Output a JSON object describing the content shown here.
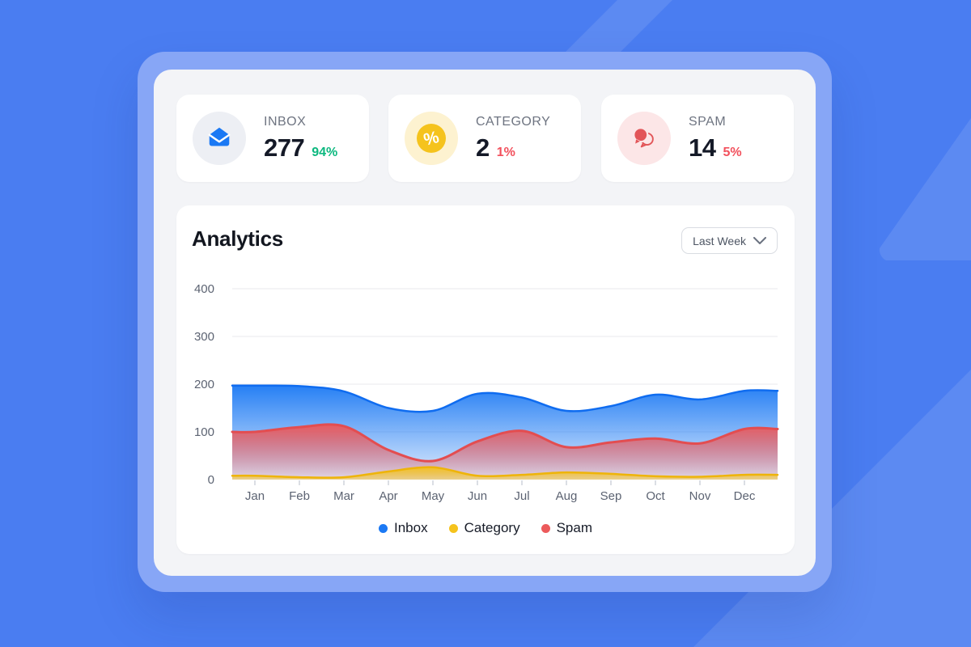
{
  "colors": {
    "background": "#4a7df1",
    "background_decor": "rgba(255,255,255,0.10)",
    "frame": "#87a6f6",
    "panel": "#f3f4f7",
    "card": "#ffffff",
    "positive": "#0cb87f",
    "negative": "#f2505c"
  },
  "stat_cards": [
    {
      "id": "inbox",
      "label": "INBOX",
      "value": "277",
      "percent": "94%",
      "percent_color": "#0cb87f",
      "icon": "mail-icon",
      "icon_bg": "#edeff4",
      "icon_color": "#1b79f4"
    },
    {
      "id": "category",
      "label": "CATEGORY",
      "value": "2",
      "percent": "1%",
      "percent_color": "#f2505c",
      "icon": "percent-icon",
      "icon_bg": "#fdf2d0",
      "icon_color": "#f5c31d"
    },
    {
      "id": "spam",
      "label": "SPAM",
      "value": "14",
      "percent": "5%",
      "percent_color": "#f2505c",
      "icon": "chat-bubbles-icon",
      "icon_bg": "#fce6e7",
      "icon_color": "#e25558"
    }
  ],
  "analytics": {
    "title": "Analytics",
    "range_selector": {
      "label": "Last Week"
    }
  },
  "chart_data": {
    "type": "area",
    "title": "Analytics",
    "categories": [
      "Jan",
      "Feb",
      "Mar",
      "Apr",
      "May",
      "Jun",
      "Jul",
      "Aug",
      "Sep",
      "Oct",
      "Nov",
      "Dec"
    ],
    "series": [
      {
        "name": "Inbox",
        "color": "#1b79f4",
        "stroke": "#0f6cf0",
        "values": [
          197,
          196,
          185,
          150,
          144,
          180,
          172,
          144,
          154,
          178,
          168,
          186
        ]
      },
      {
        "name": "Category",
        "color": "#f5c31d",
        "stroke": "#eeb409",
        "values": [
          8,
          5,
          5,
          17,
          26,
          8,
          10,
          15,
          12,
          7,
          6,
          10
        ]
      },
      {
        "name": "Spam",
        "color": "#ec5a5b",
        "stroke": "#e34d50",
        "values": [
          100,
          110,
          112,
          62,
          39,
          80,
          102,
          68,
          78,
          86,
          76,
          106
        ]
      }
    ],
    "ylim": [
      0,
      400
    ],
    "yticks": [
      0,
      100,
      200,
      300,
      400
    ],
    "grid": true,
    "legend_position": "bottom"
  }
}
